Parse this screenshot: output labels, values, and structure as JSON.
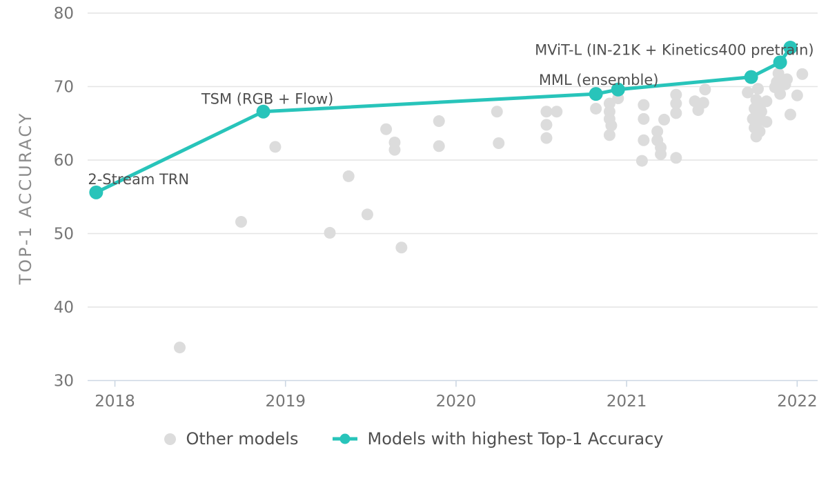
{
  "chart_data": {
    "type": "scatter",
    "title": "",
    "xlabel": "",
    "ylabel": "TOP-1 ACCURACY",
    "xlim": [
      2017.84,
      2022.12
    ],
    "ylim": [
      30,
      80
    ],
    "x_ticks": [
      2018,
      2019,
      2020,
      2021,
      2022
    ],
    "y_ticks": [
      30,
      40,
      50,
      60,
      70,
      80
    ],
    "grid": "horizontal",
    "legend_position": "bottom-center",
    "colors": {
      "other_models": "#dcdcdc",
      "sota_line": "#28c4ba",
      "gridline": "#e4e4e4",
      "axis": "#ccd7e3",
      "tick_label": "#757575",
      "annotation": "#4f4f4f"
    },
    "series": [
      {
        "name": "Other models",
        "type": "scatter",
        "color": "#dcdcdc",
        "points": [
          [
            2018.38,
            34.5
          ],
          [
            2018.74,
            51.6
          ],
          [
            2018.94,
            61.8
          ],
          [
            2019.26,
            50.1
          ],
          [
            2019.37,
            57.8
          ],
          [
            2019.48,
            52.6
          ],
          [
            2019.59,
            64.2
          ],
          [
            2019.64,
            62.4
          ],
          [
            2019.64,
            61.4
          ],
          [
            2019.68,
            48.1
          ],
          [
            2019.9,
            65.3
          ],
          [
            2019.9,
            61.9
          ],
          [
            2020.24,
            66.6
          ],
          [
            2020.25,
            62.3
          ],
          [
            2020.53,
            66.6
          ],
          [
            2020.59,
            66.6
          ],
          [
            2020.53,
            64.8
          ],
          [
            2020.53,
            63.0
          ],
          [
            2020.82,
            67.0
          ],
          [
            2020.9,
            67.7
          ],
          [
            2020.95,
            68.4
          ],
          [
            2020.9,
            66.6
          ],
          [
            2020.9,
            65.6
          ],
          [
            2020.91,
            64.7
          ],
          [
            2020.9,
            63.4
          ],
          [
            2021.1,
            67.5
          ],
          [
            2021.1,
            65.6
          ],
          [
            2021.1,
            62.7
          ],
          [
            2021.09,
            59.9
          ],
          [
            2021.18,
            63.9
          ],
          [
            2021.18,
            62.7
          ],
          [
            2021.2,
            61.7
          ],
          [
            2021.2,
            60.8
          ],
          [
            2021.22,
            65.5
          ],
          [
            2021.29,
            68.9
          ],
          [
            2021.29,
            67.7
          ],
          [
            2021.29,
            66.4
          ],
          [
            2021.29,
            60.3
          ],
          [
            2021.4,
            68.0
          ],
          [
            2021.45,
            67.8
          ],
          [
            2021.42,
            66.8
          ],
          [
            2021.46,
            69.6
          ],
          [
            2021.77,
            69.7
          ],
          [
            2021.71,
            69.2
          ],
          [
            2021.76,
            68.2
          ],
          [
            2021.82,
            68.0
          ],
          [
            2021.79,
            67.7
          ],
          [
            2021.75,
            67.0
          ],
          [
            2021.79,
            66.6
          ],
          [
            2021.74,
            65.6
          ],
          [
            2021.78,
            65.4
          ],
          [
            2021.82,
            65.2
          ],
          [
            2021.75,
            64.4
          ],
          [
            2021.78,
            63.9
          ],
          [
            2021.76,
            63.2
          ],
          [
            2021.87,
            69.9
          ],
          [
            2021.88,
            70.6
          ],
          [
            2021.93,
            70.3
          ],
          [
            2021.89,
            71.8
          ],
          [
            2021.94,
            71.0
          ],
          [
            2021.9,
            69.0
          ],
          [
            2021.96,
            66.2
          ],
          [
            2022.0,
            68.8
          ],
          [
            2022.03,
            71.7
          ]
        ]
      },
      {
        "name": "Models with highest Top-1 Accuracy",
        "type": "line+scatter",
        "color": "#28c4ba",
        "points": [
          [
            2017.89,
            55.6
          ],
          [
            2018.87,
            66.6
          ],
          [
            2020.82,
            69.0
          ],
          [
            2020.95,
            69.6
          ],
          [
            2021.73,
            71.3
          ],
          [
            2021.9,
            73.3
          ],
          [
            2021.96,
            75.3
          ]
        ],
        "annotations": [
          {
            "point": 0,
            "text": "2-Stream TRN",
            "anchor": "start",
            "dx": -12,
            "dy": -12
          },
          {
            "point": 1,
            "text": "TSM (RGB + Flow)",
            "anchor": "middle",
            "dx": 6,
            "dy": -11
          },
          {
            "point": 2,
            "text": "MML (ensemble)",
            "anchor": "middle",
            "dx": 4,
            "dy": -13
          },
          {
            "point": 5,
            "text": "MViT-L (IN-21K + Kinetics400 pretrain)",
            "anchor": "end",
            "dx": 49,
            "dy": -11
          }
        ]
      }
    ]
  }
}
